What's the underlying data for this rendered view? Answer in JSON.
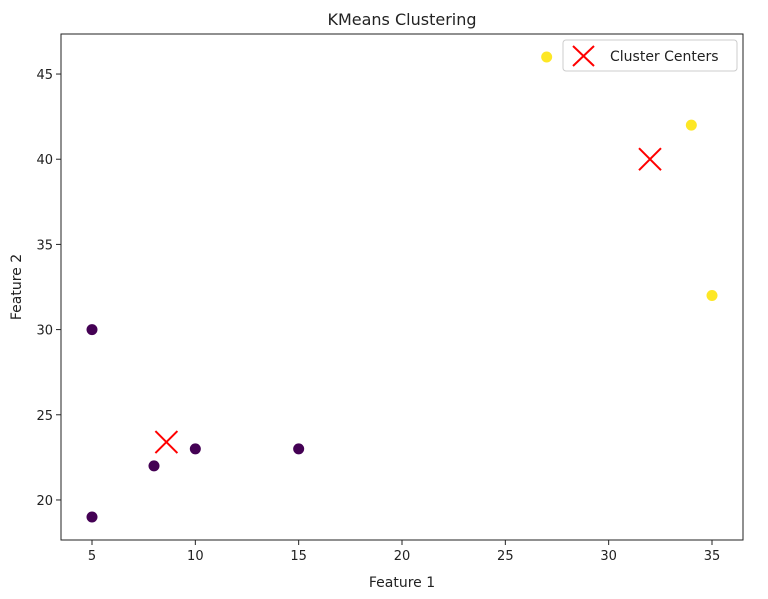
{
  "chart_data": {
    "type": "scatter",
    "title": "KMeans Clustering",
    "xlabel": "Feature 1",
    "ylabel": "Feature 2",
    "xlim": [
      3.5,
      36.5
    ],
    "ylim": [
      17.65,
      47.35
    ],
    "xticks": [
      5,
      10,
      15,
      20,
      25,
      30,
      35
    ],
    "yticks": [
      20,
      25,
      30,
      35,
      40,
      45
    ],
    "grid": false,
    "legend_position": "top-right",
    "points": [
      {
        "x": 5,
        "y": 30,
        "cluster": 0
      },
      {
        "x": 5,
        "y": 19,
        "cluster": 0
      },
      {
        "x": 8,
        "y": 22,
        "cluster": 0
      },
      {
        "x": 10,
        "y": 23,
        "cluster": 0
      },
      {
        "x": 15,
        "y": 23,
        "cluster": 0
      },
      {
        "x": 27,
        "y": 46,
        "cluster": 1
      },
      {
        "x": 34,
        "y": 42,
        "cluster": 1
      },
      {
        "x": 35,
        "y": 32,
        "cluster": 1
      }
    ],
    "cluster_colors": [
      "#440154",
      "#fde725"
    ],
    "centers": {
      "name": "Cluster Centers",
      "color": "#ff0000",
      "points": [
        {
          "x": 8.6,
          "y": 23.4
        },
        {
          "x": 32,
          "y": 40
        }
      ]
    }
  }
}
